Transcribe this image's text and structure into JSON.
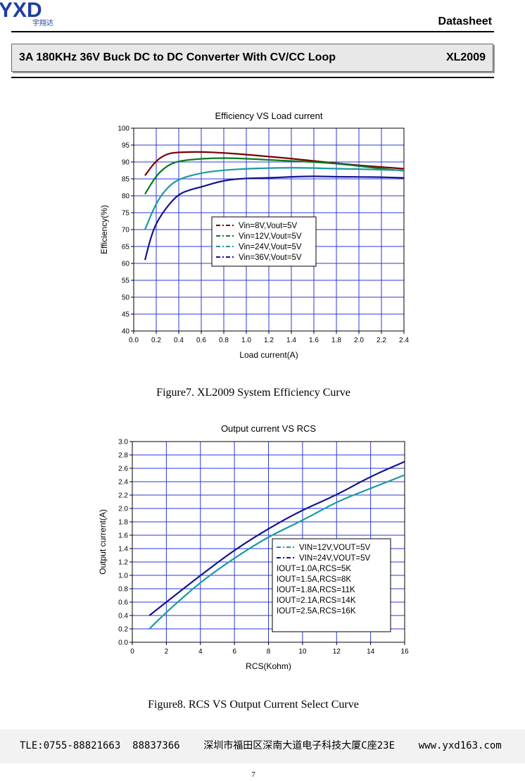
{
  "header": {
    "logo_text": "YXD",
    "logo_sub": "宇翔达",
    "doc_type": "Datasheet",
    "title": "3A 180KHz 36V Buck DC to DC Converter With CV/CC Loop",
    "part": "XL2009"
  },
  "figure7": {
    "caption": "Figure7. XL2009 System Efficiency Curve"
  },
  "figure8": {
    "caption": "Figure8. RCS VS Output Current Select Curve"
  },
  "chart_data": [
    {
      "type": "line",
      "title": "Efficiency VS Load current",
      "xlabel": "Load current(A)",
      "ylabel": "Efficiency(%)",
      "xlim": [
        0.0,
        2.4
      ],
      "ylim": [
        40,
        100
      ],
      "xticks": [
        "0.0",
        "0.2",
        "0.4",
        "0.6",
        "0.8",
        "1.0",
        "1.2",
        "1.4",
        "1.6",
        "1.8",
        "2.0",
        "2.2",
        "2.4"
      ],
      "yticks": [
        "40",
        "45",
        "50",
        "55",
        "60",
        "65",
        "70",
        "75",
        "80",
        "85",
        "90",
        "95",
        "100"
      ],
      "grid": true,
      "legend_position": "center",
      "series": [
        {
          "name": "Vin=8V,Vout=5V",
          "color": "#7a0000",
          "x": [
            0.1,
            0.2,
            0.3,
            0.4,
            0.6,
            0.8,
            1.0,
            1.2,
            1.4,
            1.6,
            1.8,
            2.0,
            2.2,
            2.4
          ],
          "y": [
            86,
            90.5,
            92.5,
            92.9,
            93.0,
            92.7,
            92.2,
            91.6,
            91.0,
            90.3,
            89.6,
            89.0,
            88.5,
            88.0
          ]
        },
        {
          "name": "Vin=12V,Vout=5V",
          "color": "#0a7a22",
          "x": [
            0.1,
            0.2,
            0.3,
            0.4,
            0.6,
            0.8,
            1.0,
            1.2,
            1.4,
            1.6,
            1.8,
            2.0,
            2.2,
            2.4
          ],
          "y": [
            80.5,
            86,
            89,
            90.3,
            91.0,
            91.2,
            91.0,
            90.6,
            90.3,
            90.0,
            89.5,
            88.8,
            88.0,
            87.4
          ]
        },
        {
          "name": "Vin=24V,Vout=5V",
          "color": "#1a9aa0",
          "x": [
            0.1,
            0.2,
            0.3,
            0.4,
            0.6,
            0.8,
            1.0,
            1.2,
            1.4,
            1.6,
            1.8,
            2.0,
            2.2,
            2.4
          ],
          "y": [
            70,
            78,
            82.5,
            85,
            86.8,
            87.6,
            88.0,
            88.2,
            88.3,
            88.2,
            88.0,
            87.9,
            87.7,
            87.5
          ]
        },
        {
          "name": "Vin=36V,Vout=5V",
          "color": "#14148c",
          "x": [
            0.1,
            0.15,
            0.2,
            0.3,
            0.4,
            0.5,
            0.6,
            0.8,
            1.0,
            1.2,
            1.4,
            1.6,
            1.8,
            2.0,
            2.2,
            2.4
          ],
          "y": [
            61,
            67.5,
            72,
            77,
            80.5,
            81.8,
            82.6,
            84.6,
            85.2,
            85.3,
            85.6,
            85.8,
            85.6,
            85.6,
            85.5,
            85.3
          ]
        }
      ]
    },
    {
      "type": "line",
      "title": "Output current VS RCS",
      "xlabel": "RCS(Kohm)",
      "ylabel": "Output current(A)",
      "xlim": [
        0,
        16
      ],
      "ylim": [
        0.0,
        3.0
      ],
      "xticks": [
        "0",
        "2",
        "4",
        "6",
        "8",
        "10",
        "12",
        "14",
        "16"
      ],
      "yticks": [
        "0.0",
        "0.2",
        "0.4",
        "0.6",
        "0.8",
        "1.0",
        "1.2",
        "1.4",
        "1.6",
        "1.8",
        "2.0",
        "2.2",
        "2.4",
        "2.6",
        "2.8",
        "3.0"
      ],
      "grid": true,
      "legend_position": "bottom-right",
      "series": [
        {
          "name": "VIN=12V,VOUT=5V",
          "color": "#1a9aa0",
          "x": [
            1,
            2,
            4,
            6,
            8,
            10,
            12,
            14,
            16
          ],
          "y": [
            0.2,
            0.45,
            0.9,
            1.26,
            1.58,
            1.82,
            2.1,
            2.3,
            2.5
          ]
        },
        {
          "name": "VIN=24V,VOUT=5V",
          "color": "#14148c",
          "x": [
            1,
            2,
            4,
            6,
            8,
            10,
            12,
            14,
            16
          ],
          "y": [
            0.4,
            0.6,
            1.0,
            1.38,
            1.7,
            1.98,
            2.2,
            2.48,
            2.7
          ]
        }
      ],
      "annotations": [
        "IOUT=1.0A,RCS=5K",
        "IOUT=1.5A,RCS=8K",
        "IOUT=1.8A,RCS=11K",
        "IOUT=2.1A,RCS=14K",
        "IOUT=2.5A,RCS=16K"
      ]
    }
  ],
  "footer": {
    "contact": "TLE:0755-88821663  88837366    深圳市福田区深南大道电子科技大厦C座23E    www.yxd163.com",
    "page_number": "7"
  }
}
